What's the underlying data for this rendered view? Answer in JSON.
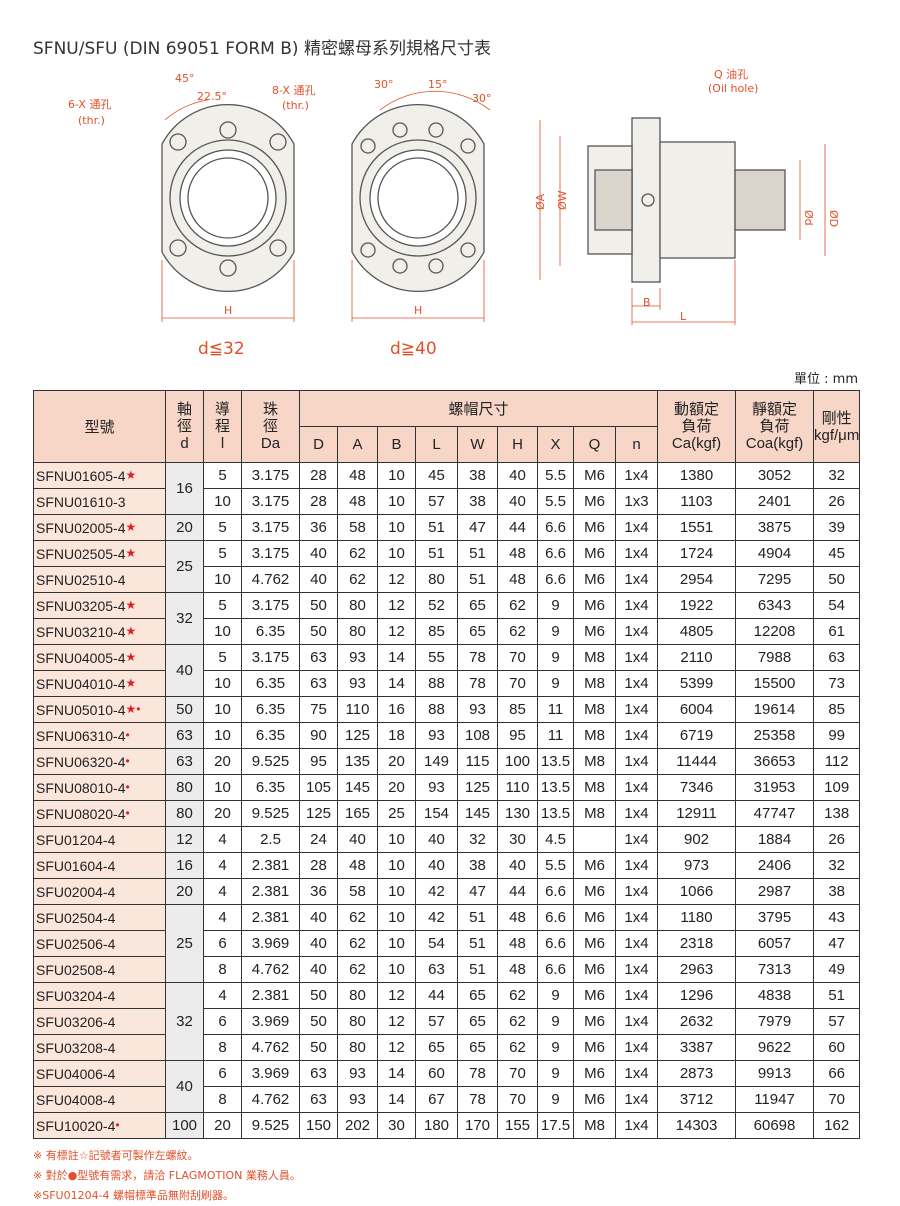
{
  "title": "SFNU/SFU (DIN 69051 FORM B) 精密螺母系列規格尺寸表",
  "diagram": {
    "angle45": "45°",
    "angle22": "22.5°",
    "holes6": "6-X 通孔",
    "thr1": "(thr.)",
    "holes8": "8-X 通孔",
    "thr2": "(thr.)",
    "angle30a": "30°",
    "angle15": "15°",
    "angle30b": "30°",
    "h1": "H",
    "h2": "H",
    "small": "d≦32",
    "large": "d≧40",
    "oil": "Q 油孔",
    "oilEn": "(Oil hole)",
    "dimA": "ØA",
    "dimW": "ØW",
    "dimd": "Ød",
    "dimD": "ØD",
    "dimB": "B",
    "dimL": "L"
  },
  "unit": "單位 : mm",
  "table": {
    "header": {
      "model": "型號",
      "d": {
        "title": "軸徑",
        "symbol": "d"
      },
      "l": {
        "title": "導程",
        "symbol": "l"
      },
      "Da": {
        "title": "珠徑",
        "symbol": "Da"
      },
      "nut": "螺帽尺寸",
      "nutCols": [
        "D",
        "A",
        "B",
        "L",
        "W",
        "H",
        "X",
        "Q",
        "n"
      ],
      "Ca": {
        "title": "動額定負荷",
        "symbol": "Ca(kgf)"
      },
      "Coa": {
        "title": "靜額定負荷",
        "symbol": "Coa(kgf)"
      },
      "rigidity": {
        "title": "剛性",
        "symbol": "kgf/μm"
      }
    },
    "rows": [
      {
        "model": "SFNU01605-4",
        "mark": "★",
        "d": 16,
        "l": 5,
        "Da": 3.175,
        "D": 28,
        "A": 48,
        "B": 10,
        "L": 45,
        "W": 38,
        "H": 40,
        "X": 5.5,
        "Q": "M6",
        "n": "1x4",
        "Ca": 1380,
        "Coa": 3052,
        "rigidity": 32
      },
      {
        "model": "SFNU01610-3",
        "l": 10,
        "Da": 3.175,
        "D": 28,
        "A": 48,
        "B": 10,
        "L": 57,
        "W": 38,
        "H": 40,
        "X": 5.5,
        "Q": "M6",
        "n": "1x3",
        "Ca": 1103,
        "Coa": 2401,
        "rigidity": 26
      },
      {
        "model": "SFNU02005-4",
        "mark": "★",
        "d": 20,
        "l": 5,
        "Da": 3.175,
        "D": 36,
        "A": 58,
        "B": 10,
        "L": 51,
        "W": 47,
        "H": 44,
        "X": 6.6,
        "Q": "M6",
        "n": "1x4",
        "Ca": 1551,
        "Coa": 3875,
        "rigidity": 39
      },
      {
        "model": "SFNU02505-4",
        "mark": "★",
        "d": 25,
        "l": 5,
        "Da": 3.175,
        "D": 40,
        "A": 62,
        "B": 10,
        "L": 51,
        "W": 51,
        "H": 48,
        "X": 6.6,
        "Q": "M6",
        "n": "1x4",
        "Ca": 1724,
        "Coa": 4904,
        "rigidity": 45
      },
      {
        "model": "SFNU02510-4",
        "l": 10,
        "Da": 4.762,
        "D": 40,
        "A": 62,
        "B": 12,
        "L": 80,
        "W": 51,
        "H": 48,
        "X": 6.6,
        "Q": "M6",
        "n": "1x4",
        "Ca": 2954,
        "Coa": 7295,
        "rigidity": 50
      },
      {
        "model": "SFNU03205-4",
        "mark": "★",
        "d": 32,
        "l": 5,
        "Da": 3.175,
        "D": 50,
        "A": 80,
        "B": 12,
        "L": 52,
        "W": 65,
        "H": 62,
        "X": 9,
        "Q": "M6",
        "n": "1x4",
        "Ca": 1922,
        "Coa": 6343,
        "rigidity": 54
      },
      {
        "model": "SFNU03210-4",
        "mark": "★",
        "l": 10,
        "Da": 6.35,
        "D": 50,
        "A": 80,
        "B": 12,
        "L": 85,
        "W": 65,
        "H": 62,
        "X": 9,
        "Q": "M6",
        "n": "1x4",
        "Ca": 4805,
        "Coa": 12208,
        "rigidity": 61
      },
      {
        "model": "SFNU04005-4",
        "mark": "★",
        "d": 40,
        "l": 5,
        "Da": 3.175,
        "D": 63,
        "A": 93,
        "B": 14,
        "L": 55,
        "W": 78,
        "H": 70,
        "X": 9,
        "Q": "M8",
        "n": "1x4",
        "Ca": 2110,
        "Coa": 7988,
        "rigidity": 63
      },
      {
        "model": "SFNU04010-4",
        "mark": "★",
        "l": 10,
        "Da": 6.35,
        "D": 63,
        "A": 93,
        "B": 14,
        "L": 88,
        "W": 78,
        "H": 70,
        "X": 9,
        "Q": "M8",
        "n": "1x4",
        "Ca": 5399,
        "Coa": 15500,
        "rigidity": 73
      },
      {
        "model": "SFNU05010-4",
        "mark": "★•",
        "d": 50,
        "l": 10,
        "Da": 6.35,
        "D": 75,
        "A": 110,
        "B": 16,
        "L": 88,
        "W": 93,
        "H": 85,
        "X": 11,
        "Q": "M8",
        "n": "1x4",
        "Ca": 6004,
        "Coa": 19614,
        "rigidity": 85
      },
      {
        "model": "SFNU06310-4",
        "mark": "•",
        "d": 63,
        "l": 10,
        "Da": 6.35,
        "D": 90,
        "A": 125,
        "B": 18,
        "L": 93,
        "W": 108,
        "H": 95,
        "X": 11,
        "Q": "M8",
        "n": "1x4",
        "Ca": 6719,
        "Coa": 25358,
        "rigidity": 99
      },
      {
        "model": "SFNU06320-4",
        "mark": "•",
        "d": 63,
        "l": 20,
        "Da": 9.525,
        "D": 95,
        "A": 135,
        "B": 20,
        "L": 149,
        "W": 115,
        "H": 100,
        "X": 13.5,
        "Q": "M8",
        "n": "1x4",
        "Ca": 11444,
        "Coa": 36653,
        "rigidity": 112
      },
      {
        "model": "SFNU08010-4",
        "mark": "•",
        "d": 80,
        "l": 10,
        "Da": 6.35,
        "D": 105,
        "A": 145,
        "B": 20,
        "L": 93,
        "W": 125,
        "H": 110,
        "X": 13.5,
        "Q": "M8",
        "n": "1x4",
        "Ca": 7346,
        "Coa": 31953,
        "rigidity": 109
      },
      {
        "model": "SFNU08020-4",
        "mark": "•",
        "d": 80,
        "l": 20,
        "Da": 9.525,
        "D": 125,
        "A": 165,
        "B": 25,
        "L": 154,
        "W": 145,
        "H": 130,
        "X": 13.5,
        "Q": "M8",
        "n": "1x4",
        "Ca": 12911,
        "Coa": 47747,
        "rigidity": 138
      },
      {
        "model": "SFU01204-4",
        "d": 12,
        "l": 4,
        "Da": 2.5,
        "D": 24,
        "A": 40,
        "B": 10,
        "L": 40,
        "W": 32,
        "H": 30,
        "X": 4.5,
        "n": "1x4",
        "Ca": 902,
        "Coa": 1884,
        "rigidity": 26
      },
      {
        "model": "SFU01604-4",
        "d": 16,
        "l": 4,
        "Da": 2.381,
        "D": 28,
        "A": 48,
        "B": 10,
        "L": 40,
        "W": 38,
        "H": 40,
        "X": 5.5,
        "Q": "M6",
        "n": "1x4",
        "Ca": 973,
        "Coa": 2406,
        "rigidity": 32
      },
      {
        "model": "SFU02004-4",
        "d": 20,
        "l": 4,
        "Da": 2.381,
        "D": 36,
        "A": 58,
        "B": 10,
        "L": 42,
        "W": 47,
        "H": 44,
        "X": 6.6,
        "Q": "M6",
        "n": "1x4",
        "Ca": 1066,
        "Coa": 2987,
        "rigidity": 38
      },
      {
        "model": "SFU02504-4",
        "d": 25,
        "l": 4,
        "Da": 2.381,
        "D": 40,
        "A": 62,
        "B": 10,
        "L": 42,
        "W": 51,
        "H": 48,
        "X": 6.6,
        "Q": "M6",
        "n": "1x4",
        "Ca": 1180,
        "Coa": 3795,
        "rigidity": 43
      },
      {
        "model": "SFU02506-4",
        "l": 6,
        "Da": 3.969,
        "D": 40,
        "A": 62,
        "B": 10,
        "L": 54,
        "W": 51,
        "H": 48,
        "X": 6.6,
        "Q": "M6",
        "n": "1x4",
        "Ca": 2318,
        "Coa": 6057,
        "rigidity": 47
      },
      {
        "model": "SFU02508-4",
        "l": 8,
        "Da": 4.762,
        "D": 40,
        "A": 62,
        "B": 10,
        "L": 63,
        "W": 51,
        "H": 48,
        "X": 6.6,
        "Q": "M6",
        "n": "1x4",
        "Ca": 2963,
        "Coa": 7313,
        "rigidity": 49
      },
      {
        "model": "SFU03204-4",
        "d": 32,
        "l": 4,
        "Da": 2.381,
        "D": 50,
        "A": 80,
        "B": 12,
        "L": 44,
        "W": 65,
        "H": 62,
        "X": 9,
        "Q": "M6",
        "n": "1x4",
        "Ca": 1296,
        "Coa": 4838,
        "rigidity": 51
      },
      {
        "model": "SFU03206-4",
        "l": 6,
        "Da": 3.969,
        "D": 50,
        "A": 80,
        "B": 12,
        "L": 57,
        "W": 65,
        "H": 62,
        "X": 9,
        "Q": "M6",
        "n": "1x4",
        "Ca": 2632,
        "Coa": 7979,
        "rigidity": 57
      },
      {
        "model": "SFU03208-4",
        "l": 8,
        "Da": 4.762,
        "D": 50,
        "A": 80,
        "B": 12,
        "L": 65,
        "W": 65,
        "H": 62,
        "X": 9,
        "Q": "M6",
        "n": "1x4",
        "Ca": 3387,
        "Coa": 9622,
        "rigidity": 60
      },
      {
        "model": "SFU04006-4",
        "d": 40,
        "l": 6,
        "Da": 3.969,
        "D": 63,
        "A": 93,
        "B": 14,
        "L": 60,
        "W": 78,
        "H": 70,
        "X": 9,
        "Q": "M6",
        "n": "1x4",
        "Ca": 2873,
        "Coa": 9913,
        "rigidity": 66
      },
      {
        "model": "SFU04008-4",
        "l": 8,
        "Da": 4.762,
        "D": 63,
        "A": 93,
        "B": 14,
        "L": 67,
        "W": 78,
        "H": 70,
        "X": 9,
        "Q": "M6",
        "n": "1x4",
        "Ca": 3712,
        "Coa": 11947,
        "rigidity": 70
      },
      {
        "model": "SFU10020-4",
        "mark": "•",
        "d": 100,
        "l": 20,
        "Da": 9.525,
        "D": 150,
        "A": 202,
        "B": 30,
        "L": 180,
        "W": 170,
        "H": 155,
        "X": 17.5,
        "Q": "M8",
        "n": "1x4",
        "Ca": 14303,
        "Coa": 60698,
        "rigidity": 162
      }
    ]
  },
  "notes": [
    "※ 有標註☆記號者可製作左螺紋。",
    "※ 對於●型號有需求，請洽 FLAGMOTION 業務人員。",
    "※SFU01204-4 螺帽標準品無附刮刷器。"
  ]
}
